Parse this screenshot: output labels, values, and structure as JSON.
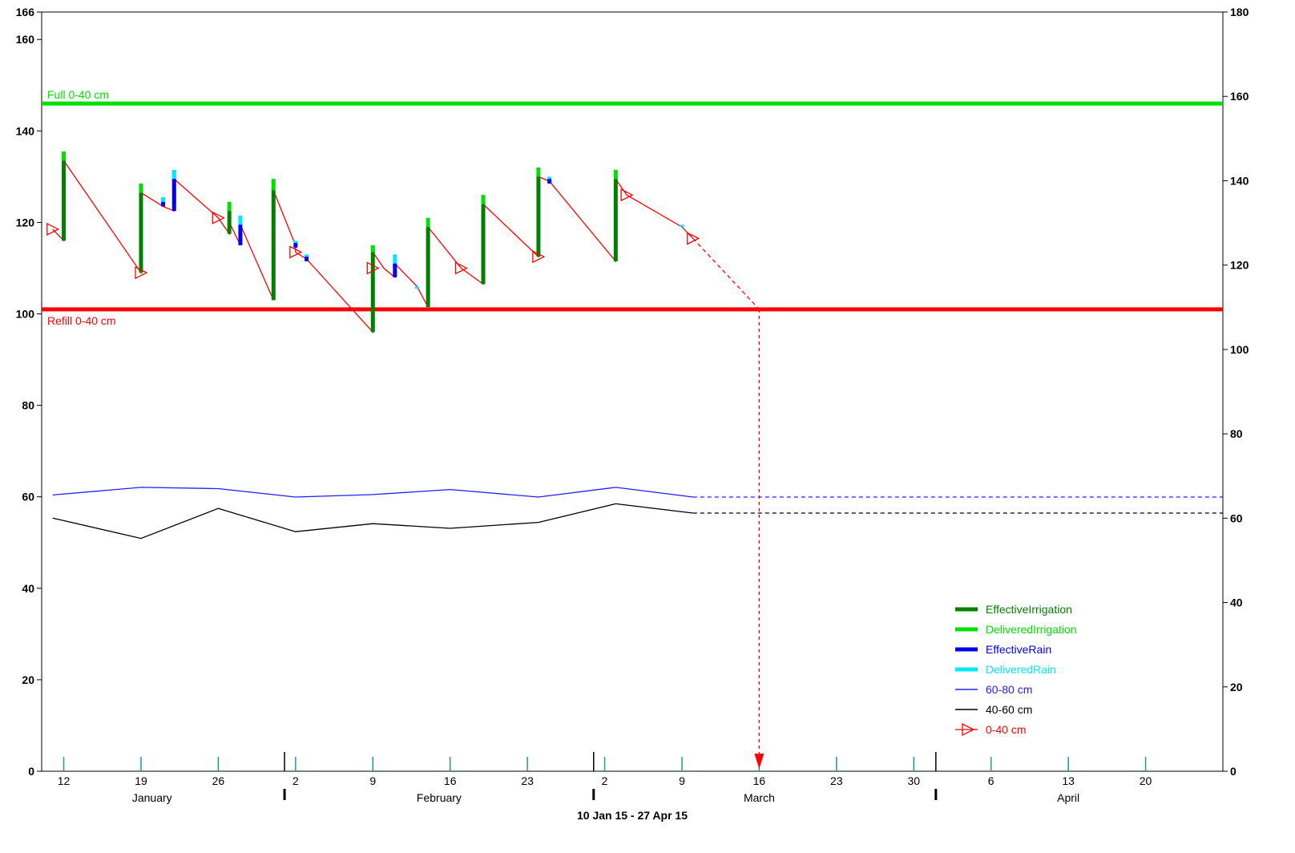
{
  "chart_data": {
    "type": "line",
    "date_range_label": "10 Jan 15 - 27 Apr 15",
    "x_axis": {
      "start": "2015-01-10",
      "end": "2015-04-27",
      "week_ticks": [
        {
          "date": "2015-01-12",
          "label": "12"
        },
        {
          "date": "2015-01-19",
          "label": "19"
        },
        {
          "date": "2015-01-26",
          "label": "26"
        },
        {
          "date": "2015-02-02",
          "label": "2"
        },
        {
          "date": "2015-02-09",
          "label": "9"
        },
        {
          "date": "2015-02-16",
          "label": "16"
        },
        {
          "date": "2015-02-23",
          "label": "23"
        },
        {
          "date": "2015-03-02",
          "label": "2"
        },
        {
          "date": "2015-03-09",
          "label": "9"
        },
        {
          "date": "2015-03-16",
          "label": "16"
        },
        {
          "date": "2015-03-23",
          "label": "23"
        },
        {
          "date": "2015-03-30",
          "label": "30"
        },
        {
          "date": "2015-04-06",
          "label": "6"
        },
        {
          "date": "2015-04-13",
          "label": "13"
        },
        {
          "date": "2015-04-20",
          "label": "20"
        }
      ],
      "month_boundaries": [
        "2015-02-01",
        "2015-03-01",
        "2015-04-01"
      ],
      "months": [
        {
          "label": "January",
          "date": "2015-01-20"
        },
        {
          "label": "February",
          "date": "2015-02-15"
        },
        {
          "label": "March",
          "date": "2015-03-16"
        },
        {
          "label": "April",
          "date": "2015-04-13"
        }
      ]
    },
    "y_left": {
      "min": 0,
      "max": 166,
      "ticks": [
        0,
        20,
        40,
        60,
        80,
        100,
        120,
        140,
        160,
        166
      ]
    },
    "y_right": {
      "min": 0,
      "max": 180,
      "ticks": [
        0,
        20,
        40,
        60,
        80,
        100,
        120,
        140,
        160,
        180
      ]
    },
    "full_line": {
      "value": 146,
      "label": "Full 0-40 cm",
      "color": "#00e000"
    },
    "refill_line": {
      "value": 101,
      "label": "Refill 0-40 cm",
      "color": "#ff0000"
    },
    "forecast_marker": {
      "date": "2015-03-16",
      "value": 101
    },
    "series": [
      {
        "name": "0-40 cm",
        "color": "#ff0000",
        "axis": "left",
        "points": [
          [
            "2015-01-11",
            118.5
          ],
          [
            "2015-01-12",
            116
          ],
          [
            "2015-01-12",
            133.5
          ],
          [
            "2015-01-19",
            109
          ],
          [
            "2015-01-19",
            126.5
          ],
          [
            "2015-01-21",
            123.5
          ],
          [
            "2015-01-22",
            122.5
          ],
          [
            "2015-01-22",
            129.5
          ],
          [
            "2015-01-26",
            121
          ],
          [
            "2015-01-27",
            117.5
          ],
          [
            "2015-01-27",
            120
          ],
          [
            "2015-01-28",
            115
          ],
          [
            "2015-01-28",
            119.5
          ],
          [
            "2015-01-31",
            103
          ],
          [
            "2015-01-31",
            127
          ],
          [
            "2015-02-02",
            115
          ],
          [
            "2015-02-02",
            113.5
          ],
          [
            "2015-02-03",
            112
          ],
          [
            "2015-02-09",
            96
          ],
          [
            "2015-02-09",
            113.5
          ],
          [
            "2015-02-10",
            110
          ],
          [
            "2015-02-11",
            108
          ],
          [
            "2015-02-11",
            111
          ],
          [
            "2015-02-13",
            106
          ],
          [
            "2015-02-14",
            101.5
          ],
          [
            "2015-02-14",
            119
          ],
          [
            "2015-02-17",
            110
          ],
          [
            "2015-02-19",
            106.5
          ],
          [
            "2015-02-19",
            124
          ],
          [
            "2015-02-24",
            112.5
          ],
          [
            "2015-02-24",
            130
          ],
          [
            "2015-02-25",
            129
          ],
          [
            "2015-03-03",
            111.5
          ],
          [
            "2015-03-03",
            129.5
          ],
          [
            "2015-03-04",
            126
          ],
          [
            "2015-03-09",
            119
          ],
          [
            "2015-03-10",
            116.5
          ]
        ],
        "markers": [
          [
            "2015-01-11",
            118.5
          ],
          [
            "2015-01-19",
            109
          ],
          [
            "2015-01-26",
            121
          ],
          [
            "2015-02-02",
            113.5
          ],
          [
            "2015-02-09",
            110
          ],
          [
            "2015-02-17",
            110
          ],
          [
            "2015-02-24",
            112.5
          ],
          [
            "2015-03-04",
            126
          ],
          [
            "2015-03-10",
            116.5
          ]
        ],
        "forecast": [
          [
            "2015-03-10",
            116.5
          ],
          [
            "2015-03-16",
            101
          ]
        ]
      },
      {
        "name": "60-80 cm",
        "color": "#2020ff",
        "axis": "right",
        "points": [
          [
            "2015-01-11",
            65.5
          ],
          [
            "2015-01-19",
            67.3
          ],
          [
            "2015-01-26",
            67
          ],
          [
            "2015-02-02",
            65
          ],
          [
            "2015-02-09",
            65.6
          ],
          [
            "2015-02-16",
            66.8
          ],
          [
            "2015-02-24",
            65
          ],
          [
            "2015-03-03",
            67.3
          ],
          [
            "2015-03-10",
            65
          ]
        ],
        "forecast": [
          [
            "2015-03-10",
            65
          ],
          [
            "2015-04-27",
            65
          ]
        ]
      },
      {
        "name": "40-60 cm",
        "color": "#000000",
        "axis": "right",
        "points": [
          [
            "2015-01-11",
            60
          ],
          [
            "2015-01-19",
            55.2
          ],
          [
            "2015-01-26",
            62.3
          ],
          [
            "2015-02-02",
            56.8
          ],
          [
            "2015-02-09",
            58.7
          ],
          [
            "2015-02-16",
            57.6
          ],
          [
            "2015-02-24",
            59
          ],
          [
            "2015-03-03",
            63.4
          ],
          [
            "2015-03-10",
            61.2
          ]
        ],
        "forecast": [
          [
            "2015-03-10",
            61.2
          ],
          [
            "2015-04-27",
            61.2
          ]
        ]
      }
    ],
    "events": [
      {
        "type": "EffectiveIrrigation",
        "date": "2015-01-12",
        "from": 116,
        "to": 133.5,
        "cap": 135.5
      },
      {
        "type": "EffectiveIrrigation",
        "date": "2015-01-19",
        "from": 109,
        "to": 126.5,
        "cap": 128.5
      },
      {
        "type": "EffectiveRain",
        "date": "2015-01-21",
        "from": 123.5,
        "to": 124.5,
        "cap": 125.5
      },
      {
        "type": "EffectiveRain",
        "date": "2015-01-22",
        "from": 122.5,
        "to": 129.5,
        "cap": 131.5
      },
      {
        "type": "EffectiveIrrigation",
        "date": "2015-01-27",
        "from": 117.5,
        "to": 122.5,
        "cap": 124.5
      },
      {
        "type": "EffectiveRain",
        "date": "2015-01-28",
        "from": 115,
        "to": 119.5,
        "cap": 121.5
      },
      {
        "type": "EffectiveIrrigation",
        "date": "2015-01-31",
        "from": 103,
        "to": 127,
        "cap": 129.5
      },
      {
        "type": "EffectiveRain",
        "date": "2015-02-02",
        "from": 114.5,
        "to": 115.5,
        "cap": 116
      },
      {
        "type": "EffectiveRain",
        "date": "2015-02-03",
        "from": 111.5,
        "to": 112.5,
        "cap": 113
      },
      {
        "type": "EffectiveIrrigation",
        "date": "2015-02-09",
        "from": 96,
        "to": 113.5,
        "cap": 115
      },
      {
        "type": "EffectiveRain",
        "date": "2015-02-11",
        "from": 108,
        "to": 111,
        "cap": 113
      },
      {
        "type": "EffectiveRain",
        "date": "2015-02-13",
        "from": 105.5,
        "to": 105.5,
        "cap": 106
      },
      {
        "type": "EffectiveIrrigation",
        "date": "2015-02-14",
        "from": 101.5,
        "to": 119,
        "cap": 121
      },
      {
        "type": "EffectiveIrrigation",
        "date": "2015-02-19",
        "from": 106.5,
        "to": 124,
        "cap": 126
      },
      {
        "type": "EffectiveIrrigation",
        "date": "2015-02-24",
        "from": 112.5,
        "to": 130,
        "cap": 132
      },
      {
        "type": "EffectiveRain",
        "date": "2015-02-25",
        "from": 128.5,
        "to": 129.5,
        "cap": 130
      },
      {
        "type": "EffectiveIrrigation",
        "date": "2015-03-03",
        "from": 111.5,
        "to": 129.5,
        "cap": 131.5
      },
      {
        "type": "DeliveredRain",
        "date": "2015-03-09",
        "from": 119,
        "to": 119,
        "cap": 119.5
      }
    ],
    "legend": {
      "placement": "bottom-right",
      "items": [
        {
          "label": "EffectiveIrrigation",
          "color": "#008000",
          "kind": "thick"
        },
        {
          "label": "DeliveredIrrigation",
          "color": "#00e000",
          "kind": "thick"
        },
        {
          "label": "EffectiveRain",
          "color": "#0000ee",
          "kind": "thick"
        },
        {
          "label": "DeliveredRain",
          "color": "#00e8ff",
          "kind": "thick"
        },
        {
          "label": "60-80 cm",
          "color": "#2020ff",
          "kind": "thin"
        },
        {
          "label": "40-60 cm",
          "color": "#000000",
          "kind": "thin"
        },
        {
          "label": "0-40 cm",
          "color": "#ff0000",
          "kind": "marker"
        }
      ]
    },
    "colors": {
      "effective_irrigation": "#008000",
      "delivered_irrigation": "#00e000",
      "effective_rain": "#0000ee",
      "delivered_rain": "#00e8ff",
      "week_tick": "#1a9a9a"
    }
  }
}
